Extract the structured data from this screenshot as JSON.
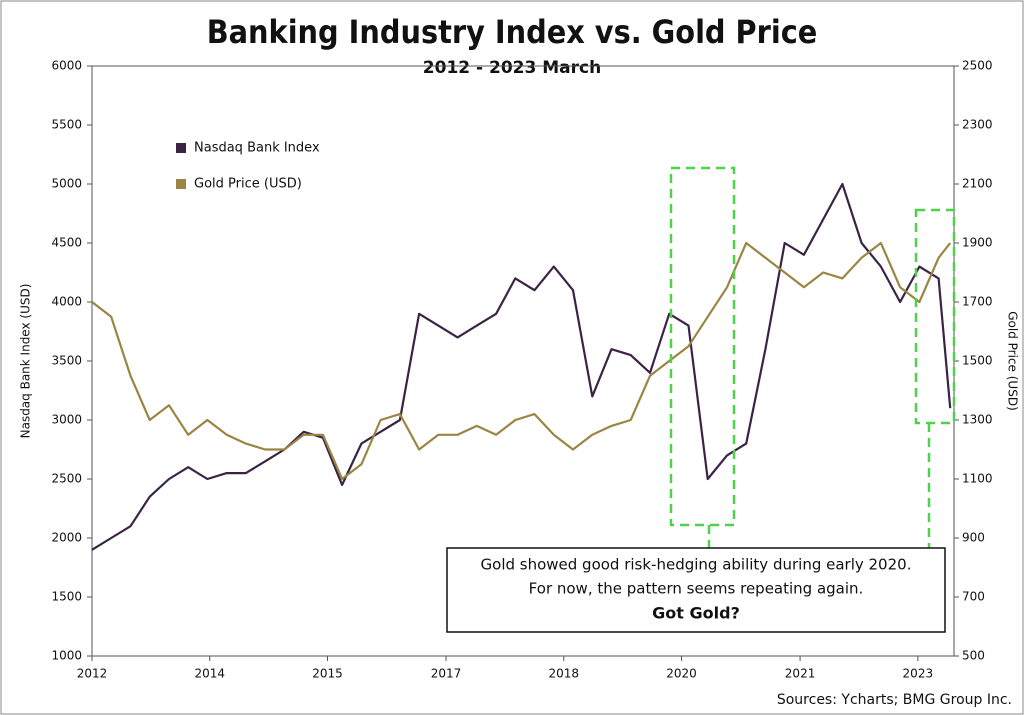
{
  "chart_data": {
    "type": "line",
    "title": "Banking Industry Index vs. Gold Price",
    "subtitle": "2012 - 2023 March",
    "y_label": "Nasdaq Bank Index (USD)",
    "y2_label": "Gold Price (USD)",
    "source": "Sources: Ycharts; BMG Group Inc.",
    "annotation": [
      "Gold showed good risk-hedging ability during early 2020.",
      "For now, the pattern seems repeating again.",
      "Got Gold?"
    ],
    "legend": "upper left",
    "grid": false,
    "xlim": [
      2012,
      2023.2
    ],
    "xticks": [
      {
        "value": 2012,
        "label": "2012"
      },
      {
        "value": 2013.53,
        "label": "2014"
      },
      {
        "value": 2015.06,
        "label": "2015"
      },
      {
        "value": 2016.6,
        "label": "2017"
      },
      {
        "value": 2018.13,
        "label": "2018"
      },
      {
        "value": 2019.66,
        "label": "2020"
      },
      {
        "value": 2021.2,
        "label": "2021"
      },
      {
        "value": 2022.73,
        "label": "2023"
      }
    ],
    "ylim": [
      1000,
      6000
    ],
    "yticks": [
      1000,
      1500,
      2000,
      2500,
      3000,
      3500,
      4000,
      4500,
      5000,
      5500,
      6000
    ],
    "y2lim": [
      500,
      2500
    ],
    "y2ticks": [
      500,
      700,
      900,
      1100,
      1300,
      1500,
      1700,
      1900,
      2100,
      2300,
      2500
    ],
    "x": [
      2012,
      2012.25,
      2012.5,
      2012.75,
      2013,
      2013.25,
      2013.5,
      2013.75,
      2014,
      2014.25,
      2014.5,
      2014.75,
      2015,
      2015.25,
      2015.5,
      2015.75,
      2016,
      2016.25,
      2016.5,
      2016.75,
      2017,
      2017.25,
      2017.5,
      2017.75,
      2018,
      2018.25,
      2018.5,
      2018.75,
      2019,
      2019.25,
      2019.5,
      2019.75,
      2020,
      2020.25,
      2020.5,
      2020.75,
      2021,
      2021.25,
      2021.5,
      2021.75,
      2022,
      2022.25,
      2022.5,
      2022.75,
      2023,
      2023.15
    ],
    "series": [
      {
        "name": "Nasdaq Bank Index",
        "color": "#3b2346",
        "axis": "y",
        "values": [
          1900,
          2000,
          2100,
          2350,
          2500,
          2600,
          2500,
          2550,
          2550,
          2650,
          2750,
          2900,
          2850,
          2450,
          2800,
          2900,
          3000,
          3900,
          3800,
          3700,
          3800,
          3900,
          4200,
          4100,
          4300,
          4100,
          3200,
          3600,
          3550,
          3400,
          3900,
          3800,
          2500,
          2700,
          2800,
          3600,
          4500,
          4400,
          4700,
          5000,
          4500,
          4300,
          4000,
          4300,
          4200,
          3100
        ]
      },
      {
        "name": "Gold Price (USD)",
        "color": "#9a8543",
        "axis": "y2",
        "values": [
          1700,
          1650,
          1450,
          1300,
          1350,
          1250,
          1300,
          1250,
          1220,
          1200,
          1200,
          1250,
          1250,
          1100,
          1150,
          1300,
          1320,
          1200,
          1250,
          1250,
          1280,
          1250,
          1300,
          1320,
          1250,
          1200,
          1250,
          1280,
          1300,
          1450,
          1500,
          1550,
          1650,
          1750,
          1900,
          1850,
          1800,
          1750,
          1800,
          1780,
          1850,
          1900,
          1750,
          1700,
          1850,
          1900
        ]
      }
    ]
  }
}
